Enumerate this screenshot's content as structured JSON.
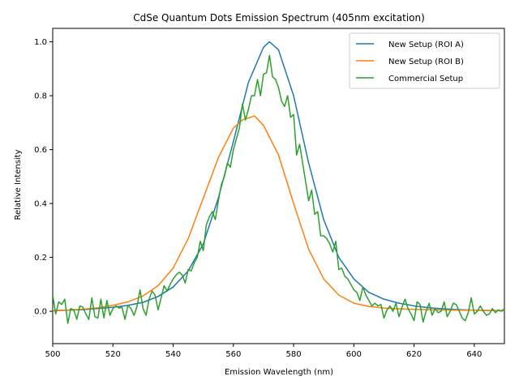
{
  "chart_data": {
    "type": "line",
    "title": "CdSe Quantum Dots Emission Spectrum (405nm excitation)",
    "xlabel": "Emission Wavelength (nm)",
    "ylabel": "Relative Intensity",
    "xlim": [
      500,
      650
    ],
    "ylim": [
      -0.12,
      1.05
    ],
    "xticks": [
      500,
      520,
      540,
      560,
      580,
      600,
      620,
      640
    ],
    "yticks": [
      0.0,
      0.2,
      0.4,
      0.6,
      0.8,
      1.0
    ],
    "xtick_labels": [
      "500",
      "520",
      "540",
      "560",
      "580",
      "600",
      "620",
      "640"
    ],
    "ytick_labels": [
      "0.0",
      "0.2",
      "0.4",
      "0.6",
      "0.8",
      "1.0"
    ],
    "grid": false,
    "legend_position": "top-right",
    "series": [
      {
        "name": "New Setup (ROI A)",
        "color": "#1f77b4",
        "x": [
          500,
          505,
          510,
          515,
          520,
          525,
          530,
          535,
          540,
          545,
          550,
          555,
          560,
          565,
          570,
          572,
          575,
          580,
          585,
          590,
          595,
          600,
          605,
          610,
          615,
          620,
          625,
          630,
          635,
          640,
          645,
          650
        ],
        "y": [
          0.002,
          0.004,
          0.006,
          0.01,
          0.015,
          0.022,
          0.033,
          0.055,
          0.09,
          0.15,
          0.25,
          0.42,
          0.63,
          0.85,
          0.98,
          1.0,
          0.97,
          0.8,
          0.55,
          0.34,
          0.2,
          0.12,
          0.07,
          0.045,
          0.03,
          0.02,
          0.013,
          0.009,
          0.006,
          0.004,
          0.003,
          0.002
        ]
      },
      {
        "name": "New Setup (ROI B)",
        "color": "#ff7f0e",
        "x": [
          500,
          505,
          510,
          515,
          520,
          525,
          530,
          535,
          540,
          545,
          550,
          555,
          560,
          563,
          567,
          570,
          575,
          580,
          585,
          590,
          595,
          600,
          605,
          610,
          615,
          620,
          625,
          630,
          635,
          640,
          645,
          650
        ],
        "y": [
          0.003,
          0.005,
          0.008,
          0.013,
          0.022,
          0.035,
          0.057,
          0.095,
          0.16,
          0.27,
          0.42,
          0.57,
          0.68,
          0.71,
          0.725,
          0.69,
          0.58,
          0.4,
          0.23,
          0.12,
          0.06,
          0.03,
          0.018,
          0.012,
          0.009,
          0.007,
          0.006,
          0.005,
          0.004,
          0.004,
          0.003,
          0.003
        ]
      },
      {
        "name": "Commercial Setup",
        "color": "#2ca02c",
        "x": [
          500,
          501,
          502,
          503,
          504,
          505,
          506,
          507,
          508,
          509,
          510,
          511,
          512,
          513,
          514,
          515,
          516,
          517,
          518,
          519,
          520,
          521,
          522,
          523,
          524,
          525,
          526,
          527,
          528,
          529,
          530,
          531,
          532,
          533,
          534,
          535,
          536,
          537,
          538,
          539,
          540,
          541,
          542,
          543,
          544,
          545,
          546,
          547,
          548,
          549,
          550,
          551,
          552,
          553,
          554,
          555,
          556,
          557,
          558,
          559,
          560,
          561,
          562,
          563,
          564,
          565,
          566,
          567,
          568,
          569,
          570,
          571,
          572,
          573,
          574,
          575,
          576,
          577,
          578,
          579,
          580,
          581,
          582,
          583,
          584,
          585,
          586,
          587,
          588,
          589,
          590,
          591,
          592,
          593,
          594,
          595,
          596,
          597,
          598,
          599,
          600,
          601,
          602,
          603,
          604,
          605,
          606,
          607,
          608,
          609,
          610,
          611,
          612,
          613,
          614,
          615,
          616,
          617,
          618,
          619,
          620,
          621,
          622,
          623,
          624,
          625,
          626,
          627,
          628,
          629,
          630,
          631,
          632,
          633,
          634,
          635,
          636,
          637,
          638,
          639,
          640,
          641,
          642,
          643,
          644,
          645,
          646,
          647,
          648,
          649,
          650
        ],
        "y": [
          0.06,
          -0.01,
          0.035,
          0.025,
          0.045,
          -0.045,
          0.01,
          0.005,
          -0.03,
          0.02,
          0.015,
          -0.01,
          -0.03,
          0.05,
          -0.02,
          -0.025,
          0.045,
          -0.025,
          0.04,
          -0.015,
          0.01,
          0.02,
          0.012,
          0.015,
          -0.03,
          0.022,
          0.01,
          -0.015,
          0.018,
          0.08,
          0.01,
          -0.015,
          0.045,
          0.075,
          0.06,
          0.005,
          0.05,
          0.095,
          0.075,
          0.1,
          0.12,
          0.135,
          0.145,
          0.135,
          0.105,
          0.155,
          0.15,
          0.18,
          0.2,
          0.26,
          0.225,
          0.32,
          0.35,
          0.37,
          0.34,
          0.41,
          0.47,
          0.5,
          0.55,
          0.535,
          0.6,
          0.64,
          0.68,
          0.77,
          0.71,
          0.75,
          0.8,
          0.8,
          0.86,
          0.8,
          0.88,
          0.885,
          0.95,
          0.87,
          0.86,
          0.83,
          0.78,
          0.76,
          0.8,
          0.72,
          0.73,
          0.58,
          0.62,
          0.55,
          0.48,
          0.41,
          0.45,
          0.36,
          0.37,
          0.28,
          0.28,
          0.27,
          0.25,
          0.22,
          0.26,
          0.155,
          0.16,
          0.13,
          0.12,
          0.1,
          0.08,
          0.07,
          0.04,
          0.09,
          0.06,
          0.04,
          0.02,
          0.03,
          0.02,
          0.025,
          -0.025,
          0.005,
          0.02,
          0.0,
          0.03,
          -0.02,
          0.015,
          0.045,
          0.01,
          -0.01,
          -0.035,
          0.035,
          0.025,
          -0.04,
          0.0,
          0.03,
          -0.015,
          0.01,
          -0.005,
          0.0,
          0.035,
          -0.02,
          0.0,
          0.03,
          0.025,
          0.0,
          -0.025,
          -0.035,
          -0.005,
          0.05,
          -0.01,
          0.0,
          0.02,
          0.0,
          -0.015,
          -0.01,
          0.01,
          -0.005,
          0.005,
          0.0,
          0.01
        ]
      }
    ]
  }
}
